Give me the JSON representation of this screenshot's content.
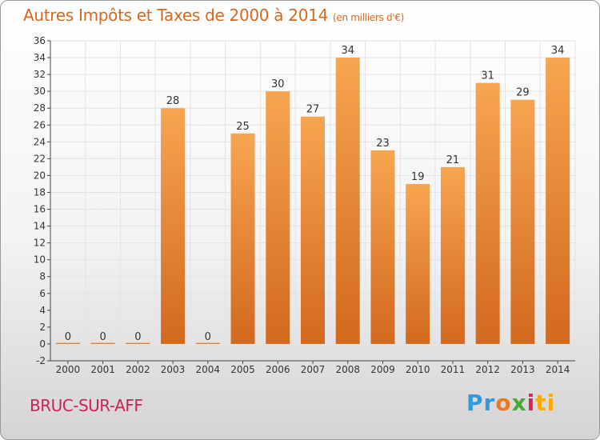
{
  "title": "Autres Impôts et Taxes de 2000 à 2014",
  "unit_note": "(en milliers d'€)",
  "commune": "BRUC-SUR-AFF",
  "logo": {
    "p1": "Pr",
    "p2": "o",
    "p3": "x",
    "p4": "i",
    "p5": "ti"
  },
  "colors": {
    "bar_light": "#f7a550",
    "bar_dark": "#d2691e",
    "title": "#d2691e",
    "commune": "#cc2255"
  },
  "chart_data": {
    "type": "bar",
    "title": "Autres Impôts et Taxes de 2000 à 2014",
    "xlabel": "",
    "ylabel": "",
    "ylim": [
      -2,
      36
    ],
    "yticks": [
      -2,
      0,
      2,
      4,
      6,
      8,
      10,
      12,
      14,
      16,
      18,
      20,
      22,
      24,
      26,
      28,
      30,
      32,
      34,
      36
    ],
    "grid": true,
    "categories": [
      "2000",
      "2001",
      "2002",
      "2003",
      "2004",
      "2005",
      "2006",
      "2007",
      "2008",
      "2009",
      "2010",
      "2011",
      "2012",
      "2013",
      "2014"
    ],
    "values": [
      0,
      0,
      0,
      28,
      0,
      25,
      30,
      27,
      34,
      23,
      19,
      21,
      31,
      29,
      34
    ]
  }
}
